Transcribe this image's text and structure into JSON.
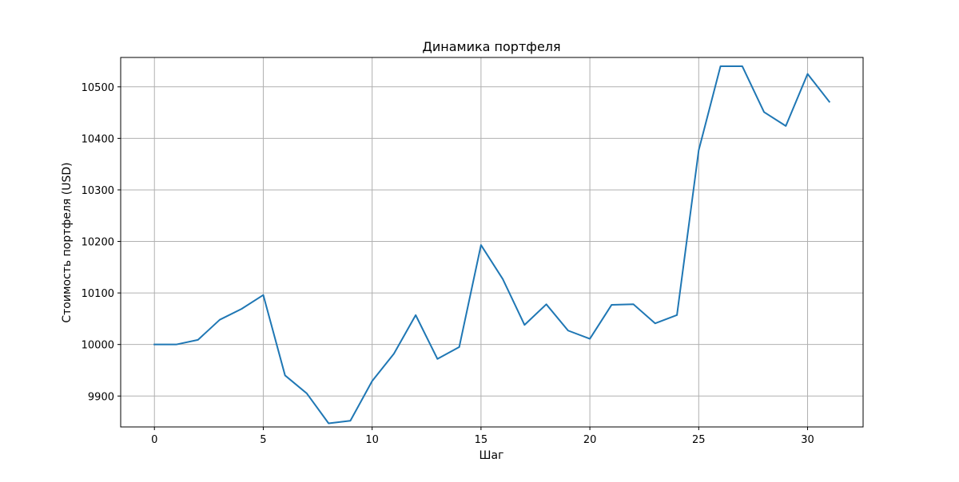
{
  "chart_data": {
    "type": "line",
    "title": "Динамика портфеля",
    "xlabel": "Шаг",
    "ylabel": "Стоимость портфеля (USD)",
    "xlim": [
      -1.55,
      32.55
    ],
    "ylim": [
      9840,
      10557
    ],
    "x_ticks": [
      0,
      5,
      10,
      15,
      20,
      25,
      30
    ],
    "y_ticks": [
      9900,
      10000,
      10100,
      10200,
      10300,
      10400,
      10500
    ],
    "grid": true,
    "series": [
      {
        "color": "#1f77b4",
        "x": [
          0,
          1,
          2,
          3,
          4,
          5,
          6,
          7,
          8,
          9,
          10,
          11,
          12,
          13,
          14,
          15,
          16,
          17,
          18,
          19,
          20,
          21,
          22,
          23,
          24,
          25,
          26,
          27,
          28,
          29,
          30,
          31
        ],
        "values": [
          10000,
          10000,
          10009,
          10048,
          10069,
          10096,
          9940,
          9905,
          9847,
          9852,
          9929,
          9982,
          10057,
          9972,
          9995,
          10193,
          10127,
          10038,
          10078,
          10027,
          10011,
          10077,
          10078,
          10041,
          10057,
          10377,
          10540,
          10540,
          10451,
          10424,
          10525,
          10471
        ]
      }
    ]
  }
}
